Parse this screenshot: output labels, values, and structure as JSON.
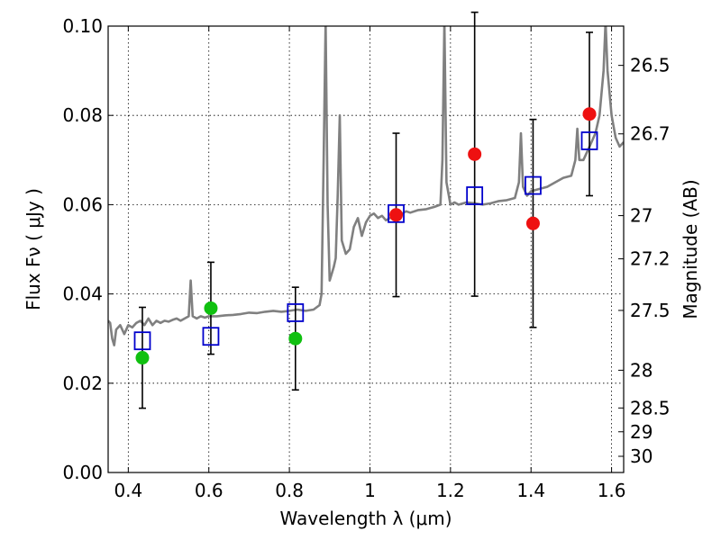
{
  "chart_data": {
    "type": "scatter",
    "title": "",
    "xlabel": "Wavelength  λ (μm)",
    "ylabel": "Flux  Fν  ( μJy )",
    "ylabel_right": "Magnitude (AB)",
    "xlim": [
      0.35,
      1.63
    ],
    "ylim": [
      0.0,
      0.1
    ],
    "grid": true,
    "x_ticks": [
      0.4,
      0.6,
      0.8,
      1.0,
      1.2,
      1.4,
      1.6
    ],
    "x_tick_labels": [
      "0.4",
      "0.6",
      "0.8",
      "1",
      "1.2",
      "1.4",
      "1.6"
    ],
    "y_ticks": [
      0.0,
      0.02,
      0.04,
      0.06,
      0.08,
      0.1
    ],
    "y_tick_labels": [
      "0.00",
      "0.02",
      "0.04",
      "0.06",
      "0.08",
      "0.10"
    ],
    "right_ticks": [
      {
        "label": "26.5",
        "mag": 26.5
      },
      {
        "label": "26.7",
        "mag": 26.7
      },
      {
        "label": "27",
        "mag": 27.0
      },
      {
        "label": "27.2",
        "mag": 27.2
      },
      {
        "label": "27.5",
        "mag": 27.5
      },
      {
        "label": "28",
        "mag": 28.0
      },
      {
        "label": "28.5",
        "mag": 28.5
      },
      {
        "label": "29",
        "mag": 29.0
      },
      {
        "label": "30",
        "mag": 30.0
      }
    ],
    "colors": {
      "spectrum": "#808080",
      "model": "#0000cc",
      "green": "#10c010",
      "red": "#ee1111",
      "errorbar": "#000000"
    },
    "series": [
      {
        "name": "SED spectrum",
        "kind": "line",
        "points": [
          [
            0.35,
            0.034
          ],
          [
            0.355,
            0.0335
          ],
          [
            0.36,
            0.03
          ],
          [
            0.365,
            0.0285
          ],
          [
            0.37,
            0.032
          ],
          [
            0.38,
            0.033
          ],
          [
            0.39,
            0.031
          ],
          [
            0.4,
            0.033
          ],
          [
            0.41,
            0.0325
          ],
          [
            0.42,
            0.0335
          ],
          [
            0.43,
            0.034
          ],
          [
            0.44,
            0.033
          ],
          [
            0.45,
            0.0345
          ],
          [
            0.46,
            0.033
          ],
          [
            0.47,
            0.034
          ],
          [
            0.48,
            0.0335
          ],
          [
            0.49,
            0.034
          ],
          [
            0.5,
            0.0338
          ],
          [
            0.51,
            0.0342
          ],
          [
            0.52,
            0.0345
          ],
          [
            0.53,
            0.034
          ],
          [
            0.54,
            0.0345
          ],
          [
            0.55,
            0.035
          ],
          [
            0.555,
            0.043
          ],
          [
            0.56,
            0.035
          ],
          [
            0.57,
            0.0345
          ],
          [
            0.58,
            0.035
          ],
          [
            0.59,
            0.0347
          ],
          [
            0.6,
            0.035
          ],
          [
            0.62,
            0.035
          ],
          [
            0.64,
            0.0352
          ],
          [
            0.66,
            0.0353
          ],
          [
            0.68,
            0.0355
          ],
          [
            0.7,
            0.0358
          ],
          [
            0.72,
            0.0357
          ],
          [
            0.74,
            0.036
          ],
          [
            0.76,
            0.0362
          ],
          [
            0.78,
            0.036
          ],
          [
            0.8,
            0.0362
          ],
          [
            0.82,
            0.0365
          ],
          [
            0.84,
            0.0362
          ],
          [
            0.86,
            0.0365
          ],
          [
            0.875,
            0.0375
          ],
          [
            0.88,
            0.04
          ],
          [
            0.885,
            0.07
          ],
          [
            0.89,
            0.101
          ],
          [
            0.895,
            0.06
          ],
          [
            0.9,
            0.043
          ],
          [
            0.91,
            0.046
          ],
          [
            0.915,
            0.048
          ],
          [
            0.92,
            0.062
          ],
          [
            0.925,
            0.08
          ],
          [
            0.93,
            0.052
          ],
          [
            0.94,
            0.049
          ],
          [
            0.95,
            0.05
          ],
          [
            0.96,
            0.055
          ],
          [
            0.97,
            0.057
          ],
          [
            0.98,
            0.053
          ],
          [
            0.99,
            0.056
          ],
          [
            1.0,
            0.0575
          ],
          [
            1.01,
            0.058
          ],
          [
            1.02,
            0.057
          ],
          [
            1.03,
            0.0575
          ],
          [
            1.04,
            0.0565
          ],
          [
            1.05,
            0.057
          ],
          [
            1.06,
            0.0578
          ],
          [
            1.07,
            0.0575
          ],
          [
            1.08,
            0.058
          ],
          [
            1.09,
            0.0585
          ],
          [
            1.1,
            0.0582
          ],
          [
            1.12,
            0.0588
          ],
          [
            1.14,
            0.059
          ],
          [
            1.16,
            0.0595
          ],
          [
            1.175,
            0.06
          ],
          [
            1.18,
            0.07
          ],
          [
            1.185,
            0.101
          ],
          [
            1.19,
            0.065
          ],
          [
            1.2,
            0.06
          ],
          [
            1.21,
            0.0605
          ],
          [
            1.22,
            0.06
          ],
          [
            1.24,
            0.0605
          ],
          [
            1.26,
            0.0603
          ],
          [
            1.28,
            0.06
          ],
          [
            1.3,
            0.0603
          ],
          [
            1.32,
            0.0608
          ],
          [
            1.34,
            0.061
          ],
          [
            1.36,
            0.0615
          ],
          [
            1.37,
            0.065
          ],
          [
            1.375,
            0.076
          ],
          [
            1.38,
            0.064
          ],
          [
            1.39,
            0.062
          ],
          [
            1.4,
            0.063
          ],
          [
            1.42,
            0.0635
          ],
          [
            1.44,
            0.064
          ],
          [
            1.46,
            0.065
          ],
          [
            1.48,
            0.066
          ],
          [
            1.5,
            0.0665
          ],
          [
            1.51,
            0.07
          ],
          [
            1.515,
            0.077
          ],
          [
            1.52,
            0.07
          ],
          [
            1.53,
            0.07
          ],
          [
            1.54,
            0.072
          ],
          [
            1.55,
            0.074
          ],
          [
            1.56,
            0.076
          ],
          [
            1.57,
            0.08
          ],
          [
            1.58,
            0.09
          ],
          [
            1.585,
            0.101
          ],
          [
            1.59,
            0.09
          ],
          [
            1.6,
            0.08
          ],
          [
            1.61,
            0.075
          ],
          [
            1.62,
            0.073
          ],
          [
            1.63,
            0.074
          ]
        ]
      },
      {
        "name": "Model fluxes",
        "kind": "open-square",
        "x": [
          0.435,
          0.605,
          0.815,
          1.065,
          1.26,
          1.405,
          1.545
        ],
        "y": [
          0.0295,
          0.0305,
          0.0358,
          0.058,
          0.062,
          0.0643,
          0.0743
        ]
      },
      {
        "name": "Observed (green)",
        "kind": "filled-circle",
        "x": [
          0.435,
          0.605,
          0.815
        ],
        "y": [
          0.0257,
          0.0368,
          0.03
        ],
        "err_low": [
          0.0113,
          0.0103,
          0.0115
        ],
        "err_high": [
          0.0113,
          0.0103,
          0.0115
        ]
      },
      {
        "name": "Observed (red)",
        "kind": "filled-circle",
        "x": [
          1.065,
          1.26,
          1.405,
          1.545
        ],
        "y": [
          0.0577,
          0.0713,
          0.0558,
          0.0803
        ],
        "err_low": [
          0.0183,
          0.0318,
          0.0233,
          0.0183
        ],
        "err_high": [
          0.0183,
          0.0318,
          0.0233,
          0.0183
        ]
      }
    ]
  }
}
